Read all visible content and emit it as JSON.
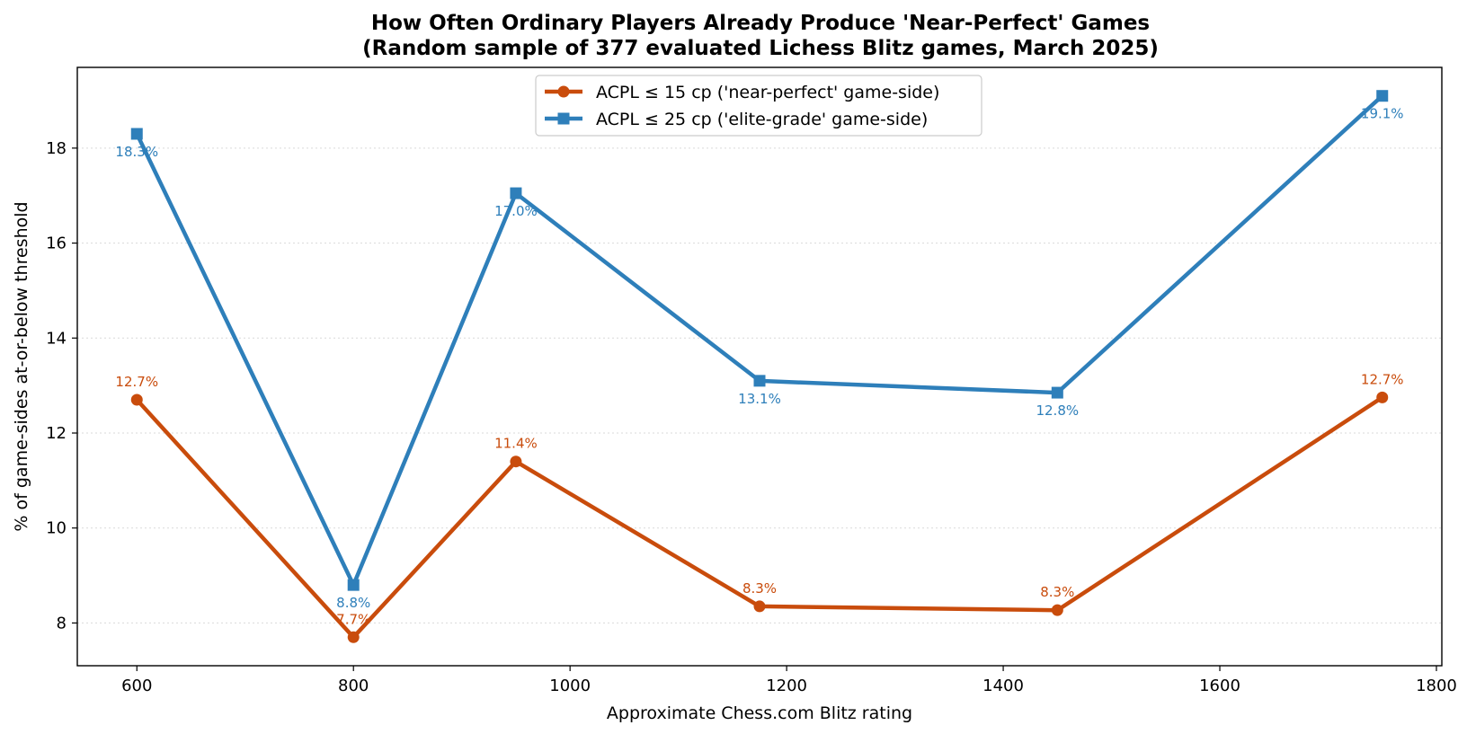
{
  "chart_data": {
    "type": "line",
    "title": [
      "How Often Ordinary Players Already Produce 'Near-Perfect' Games",
      "(Random sample of 377 evaluated Lichess Blitz games, March 2025)"
    ],
    "xlabel": "Approximate Chess.com Blitz rating",
    "ylabel": "% of game-sides at-or-below threshold",
    "xlim": [
      545,
      1805
    ],
    "ylim": [
      7.1,
      19.7
    ],
    "xticks": [
      600,
      800,
      1000,
      1200,
      1400,
      1600,
      1800
    ],
    "yticks": [
      8,
      10,
      12,
      14,
      16,
      18
    ],
    "grid": "y-dotted",
    "legend_position": "top-center",
    "x": [
      600,
      800,
      950,
      1175,
      1450,
      1750
    ],
    "series": [
      {
        "name": "ACPL ≤ 15 cp ('near-perfect' game-side)",
        "color": "#c94c0c",
        "marker": "circle",
        "values": [
          12.7,
          7.7,
          11.4,
          8.35,
          8.27,
          12.75
        ],
        "labels": [
          "12.7%",
          "7.7%",
          "11.4%",
          "8.3%",
          "8.3%",
          "12.7%"
        ]
      },
      {
        "name": "ACPL ≤ 25 cp ('elite-grade' game-side)",
        "color": "#2e7fba",
        "marker": "square",
        "values": [
          18.3,
          8.8,
          17.05,
          13.1,
          12.85,
          19.1
        ],
        "labels": [
          "18.3%",
          "8.8%",
          "17.0%",
          "13.1%",
          "12.8%",
          "19.1%"
        ]
      }
    ]
  }
}
